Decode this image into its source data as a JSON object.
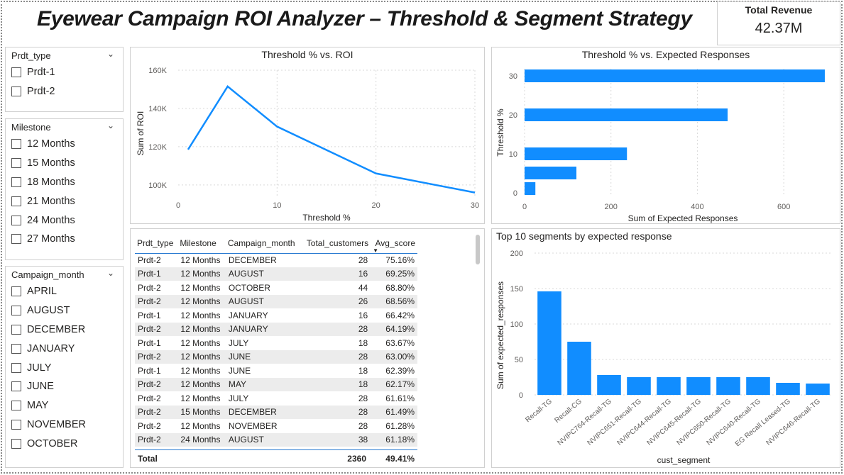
{
  "title": "Eyewear Campaign ROI Analyzer – Threshold & Segment Strategy",
  "kpi": {
    "label": "Total Revenue",
    "value": "42.37M"
  },
  "slicers": [
    {
      "title": "Prdt_type",
      "items": [
        "Prdt-1",
        "Prdt-2"
      ]
    },
    {
      "title": "Milestone",
      "items": [
        "12 Months",
        "15 Months",
        "18 Months",
        "21 Months",
        "24 Months",
        "27 Months"
      ]
    },
    {
      "title": "Campaign_month",
      "items": [
        "APRIL",
        "AUGUST",
        "DECEMBER",
        "JANUARY",
        "JULY",
        "JUNE",
        "MAY",
        "NOVEMBER",
        "OCTOBER"
      ]
    }
  ],
  "chart_data": [
    {
      "type": "line",
      "title": "Threshold % vs. ROI",
      "xlabel": "Threshold %",
      "ylabel": "Sum of ROI",
      "x": [
        1,
        5,
        10,
        20,
        30
      ],
      "series": [
        {
          "values": [
            118500,
            151500,
            130500,
            106000,
            96000
          ]
        }
      ],
      "xticks": [
        "0",
        "10",
        "20",
        "30"
      ],
      "yticks": [
        "100K",
        "120K",
        "140K",
        "160K"
      ],
      "xlim": [
        0,
        30
      ],
      "ylim": [
        94000,
        160000
      ],
      "grid": true,
      "color": "#118DFF"
    },
    {
      "type": "bar",
      "orientation": "horizontal",
      "title": "Threshold % vs. Expected Responses",
      "xlabel": "Sum of Expected Responses",
      "ylabel": "Threshold %",
      "categories": [
        30,
        20,
        10,
        5,
        1
      ],
      "values": [
        695,
        470,
        237,
        120,
        25
      ],
      "ytick_labels": [
        "30",
        "20",
        "10",
        "0"
      ],
      "xticks": [
        "0",
        "200",
        "400",
        "600"
      ],
      "xlim": [
        0,
        700
      ],
      "grid": true,
      "color": "#118DFF"
    },
    {
      "type": "bar",
      "title": "Top 10 segments by expected response",
      "xlabel": "cust_segment",
      "ylabel": "Sum of expected_responses",
      "categories": [
        "Recall-TG",
        "Recall-CG",
        "NVIPC764-Recall-TG",
        "NVIPC651-Recall-TG",
        "NVIPC644-Recall-TG",
        "NVIPC645-Recall-TG",
        "NVIPC650-Recall-TG",
        "NVIPC640-Recall-TG",
        "EG Recall Leased-TG",
        "NVIPC646-Recall-TG"
      ],
      "values": [
        146,
        75,
        28,
        25,
        25,
        25,
        25,
        25,
        17,
        16
      ],
      "yticks": [
        "0",
        "50",
        "100",
        "150",
        "200"
      ],
      "ylim": [
        0,
        200
      ],
      "grid": true,
      "color": "#118DFF"
    }
  ],
  "table": {
    "columns": [
      "Prdt_type",
      "Milestone",
      "Campaign_month",
      "Total_customers",
      "Avg_score"
    ],
    "rows": [
      [
        "Prdt-2",
        "12 Months",
        "DECEMBER",
        "28",
        "75.16%"
      ],
      [
        "Prdt-1",
        "12 Months",
        "AUGUST",
        "16",
        "69.25%"
      ],
      [
        "Prdt-2",
        "12 Months",
        "OCTOBER",
        "44",
        "68.80%"
      ],
      [
        "Prdt-2",
        "12 Months",
        "AUGUST",
        "26",
        "68.56%"
      ],
      [
        "Prdt-1",
        "12 Months",
        "JANUARY",
        "16",
        "66.42%"
      ],
      [
        "Prdt-2",
        "12 Months",
        "JANUARY",
        "28",
        "64.19%"
      ],
      [
        "Prdt-1",
        "12 Months",
        "JULY",
        "18",
        "63.67%"
      ],
      [
        "Prdt-2",
        "12 Months",
        "JUNE",
        "28",
        "63.00%"
      ],
      [
        "Prdt-1",
        "12 Months",
        "JUNE",
        "18",
        "62.39%"
      ],
      [
        "Prdt-2",
        "12 Months",
        "MAY",
        "18",
        "62.17%"
      ],
      [
        "Prdt-2",
        "12 Months",
        "JULY",
        "28",
        "61.61%"
      ],
      [
        "Prdt-2",
        "15 Months",
        "DECEMBER",
        "28",
        "61.49%"
      ],
      [
        "Prdt-2",
        "12 Months",
        "NOVEMBER",
        "28",
        "61.28%"
      ],
      [
        "Prdt-2",
        "24 Months",
        "AUGUST",
        "38",
        "61.18%"
      ]
    ],
    "total": {
      "label": "Total",
      "customers": "2360",
      "score": "49.41%"
    }
  }
}
